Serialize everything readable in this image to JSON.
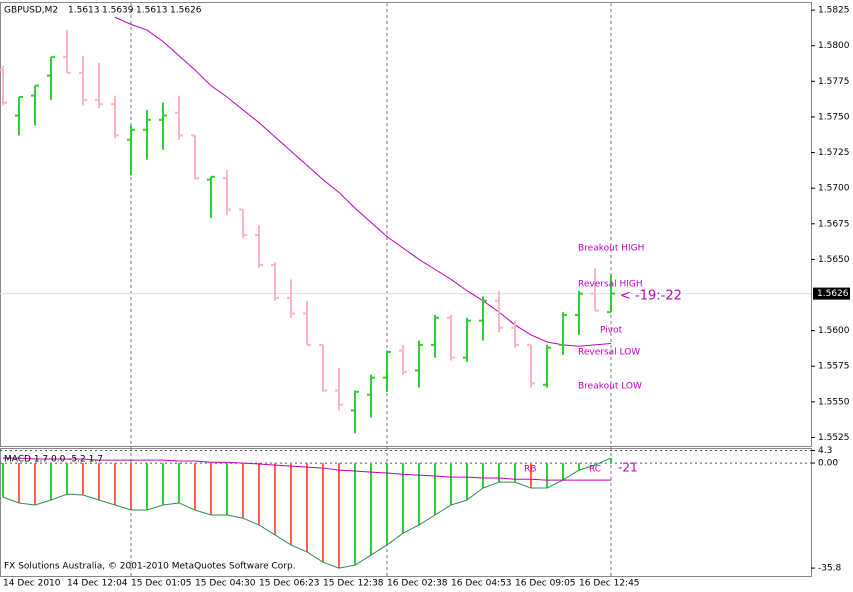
{
  "chart_data": [
    {
      "type": "ohlc",
      "title": "GBPUSD,M2",
      "header_values": [
        1.5613,
        1.5639,
        1.5613,
        1.5626
      ],
      "categories": [
        "14 Dec 2010",
        null,
        null,
        null,
        "14 Dec 12:04",
        null,
        null,
        null,
        "15 Dec 01:05",
        null,
        null,
        null,
        "15 Dec 04:30",
        null,
        null,
        null,
        "15 Dec 06:23",
        null,
        null,
        null,
        "15 Dec 12:38",
        null,
        null,
        null,
        "16 Dec 02:38",
        null,
        null,
        null,
        "16 Dec 04:53",
        null,
        null,
        null,
        "16 Dec 09:05",
        null,
        null,
        null,
        "16 Dec 12:45",
        null,
        null
      ],
      "open": [
        1.5783,
        1.5751,
        1.5765,
        1.5779,
        1.5792,
        1.5781,
        1.5762,
        1.5759,
        1.5734,
        1.5741,
        1.5748,
        1.5753,
        1.5737,
        1.5706,
        1.5707,
        1.5685,
        1.5667,
        1.5646,
        1.5623,
        1.5612,
        1.559,
        1.5558,
        1.5544,
        1.5555,
        1.5567,
        1.5586,
        1.5572,
        1.559,
        1.5609,
        1.5581,
        1.5607,
        1.5621,
        1.5602,
        1.559,
        1.5562,
        1.559,
        1.5611,
        1.5626,
        1.5613
      ],
      "high": [
        1.5786,
        1.5764,
        1.5772,
        1.5792,
        1.5811,
        1.5793,
        1.5788,
        1.5765,
        1.5744,
        1.5755,
        1.576,
        1.5765,
        1.5737,
        1.5708,
        1.5713,
        1.5685,
        1.5674,
        1.5648,
        1.5636,
        1.5621,
        1.559,
        1.5574,
        1.5558,
        1.5569,
        1.5586,
        1.559,
        1.5593,
        1.5611,
        1.5611,
        1.5609,
        1.5624,
        1.5628,
        1.5607,
        1.559,
        1.559,
        1.5613,
        1.5628,
        1.5644,
        1.5639
      ],
      "low": [
        1.5758,
        1.5737,
        1.5744,
        1.5762,
        1.5781,
        1.5758,
        1.5756,
        1.5735,
        1.5709,
        1.572,
        1.5727,
        1.5734,
        1.5706,
        1.5679,
        1.5681,
        1.5665,
        1.5644,
        1.5621,
        1.5609,
        1.559,
        1.5557,
        1.5544,
        1.5528,
        1.5539,
        1.5557,
        1.5569,
        1.556,
        1.5581,
        1.5579,
        1.5578,
        1.5593,
        1.5599,
        1.5588,
        1.556,
        1.556,
        1.5583,
        1.5597,
        1.5614,
        1.5613
      ],
      "close": [
        1.576,
        1.5764,
        1.5772,
        1.5792,
        1.5781,
        1.5762,
        1.5759,
        1.5737,
        1.5741,
        1.5748,
        1.5751,
        1.5737,
        1.5707,
        1.5708,
        1.5685,
        1.5667,
        1.5646,
        1.5623,
        1.5612,
        1.559,
        1.5558,
        1.5548,
        1.5557,
        1.5567,
        1.5585,
        1.5571,
        1.559,
        1.5609,
        1.5581,
        1.5607,
        1.5621,
        1.5602,
        1.559,
        1.5563,
        1.5588,
        1.5611,
        1.5626,
        1.5614,
        1.5626
      ],
      "up_color": "#32cd32",
      "down_color": "#ffb6c1",
      "moving_average": {
        "color": "#c000c0",
        "values": [
          null,
          null,
          null,
          null,
          null,
          null,
          null,
          1.582,
          1.5815,
          1.5811,
          1.5803,
          1.5793,
          1.5783,
          1.5772,
          1.5764,
          1.5755,
          1.5746,
          1.5736,
          1.5726,
          1.5716,
          1.5706,
          1.5697,
          1.5686,
          1.5676,
          1.5666,
          1.5658,
          1.565,
          1.5643,
          1.5636,
          1.5628,
          1.5621,
          1.5613,
          1.5604,
          1.5597,
          1.5592,
          1.559,
          1.5589,
          1.559,
          1.5591
        ]
      },
      "current_price": 1.5626,
      "annotations": [
        "Breakout HIGH",
        "Reversal HIGH",
        "< -19:-22",
        "Pivot",
        "Reversal LOW",
        "Breakout LOW"
      ],
      "ylim": [
        1.5519,
        1.583
      ],
      "yticks": [
        1.5825,
        {
          "value": 1.58,
          "label": "1.5800"
        },
        1.5775,
        {
          "value": 1.575,
          "label": "1.5750"
        },
        1.5725,
        {
          "value": 1.57,
          "label": "1.5700"
        },
        1.5675,
        {
          "value": 1.565,
          "label": "1.5650"
        },
        {
          "value": 1.56,
          "label": "1.5600"
        },
        1.5575,
        {
          "value": 1.555,
          "label": "1.5550"
        },
        1.5525
      ]
    },
    {
      "type": "macd",
      "title": "MACD 1.7 0.0 -5.2 1.7",
      "values": [
        -11.6,
        -13.6,
        -14.3,
        -12.6,
        -10.6,
        -10.9,
        -12.6,
        -14.3,
        -16.0,
        -16.0,
        -14.3,
        -13.6,
        -16.0,
        -17.7,
        -17.7,
        -18.8,
        -21.1,
        -24.5,
        -27.9,
        -30.3,
        -33.8,
        -35.8,
        -34.8,
        -31.4,
        -27.9,
        -23.9,
        -21.1,
        -17.7,
        -14.3,
        -12.6,
        -8.5,
        -6.5,
        -6.5,
        -8.5,
        -8.5,
        -5.8,
        -2.4,
        -0.7,
        1.7
      ],
      "signal": [
        1.7,
        1.7,
        1.4,
        1.4,
        1.4,
        1.4,
        1.0,
        1.0,
        1.0,
        1.0,
        1.0,
        0.7,
        0.7,
        0.3,
        0.3,
        0,
        -0.3,
        -0.7,
        -1.0,
        -1.4,
        -1.7,
        -2.4,
        -2.7,
        -3.1,
        -3.4,
        -3.8,
        -4.1,
        -4.4,
        -4.8,
        -4.8,
        -5.1,
        -5.1,
        -5.5,
        -5.5,
        -5.8,
        -5.8,
        -5.8,
        -5.8,
        -5.8
      ],
      "up_color": "#32cd32",
      "down_color": "#ff6347",
      "line_color": "#2e8b57",
      "signal_color": "#c000c0",
      "annotations": [
        "RB",
        "RC",
        "-21"
      ],
      "ylim": [
        -38.5,
        4.8
      ],
      "yticks": [
        4.3,
        {
          "value": 0,
          "label": "0.00"
        },
        -35.8
      ]
    },
    {
      "footer": "FX Solutions Australia, © 2001-2010 MetaQuotes Software Corp."
    }
  ]
}
